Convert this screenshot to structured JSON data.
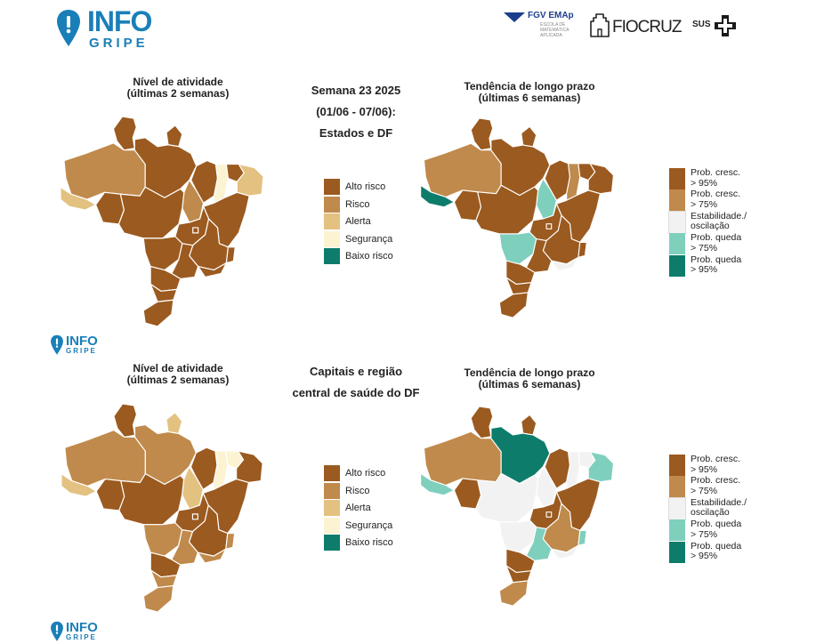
{
  "header": {
    "logo_text": "INFO",
    "logo_sub": "GRIPE",
    "partner_fgv": "FGV EMAp",
    "partner_fgv_sub": "ESCOLA DE MATEMÁTICA APLICADA",
    "partner_fiocruz": "FIOCRUZ",
    "partner_sus": "SUS"
  },
  "colors": {
    "alto_risco": "#9b5a1f",
    "risco": "#c08a4c",
    "alerta": "#e3c180",
    "seguranca": "#fcf3d2",
    "baixo_risco": "#0e7c6b",
    "prob_cresc_95": "#9b5a1f",
    "prob_cresc_75": "#c08a4c",
    "estabilidade": "#f2f2f2",
    "prob_queda_75": "#7fcfbd",
    "prob_queda_95": "#0e7c6b"
  },
  "top": {
    "center_title": [
      "Semana 23 2025",
      "(01/06 - 07/06):",
      "Estados e DF"
    ],
    "activity_title": [
      "Nível de atividade",
      "(últimas 2 semanas)"
    ],
    "trend_title": [
      "Tendência de longo prazo",
      "(últimas 6 semanas)"
    ]
  },
  "bottom": {
    "center_title": [
      "Capitais e região",
      "central de saúde do DF"
    ],
    "activity_title": [
      "Nível de atividade",
      "(últimas 2 semanas)"
    ],
    "trend_title": [
      "Tendência de longo prazo",
      "(últimas 6 semanas)"
    ]
  },
  "activity_legend": [
    "Alto risco",
    "Risco",
    "Alerta",
    "Segurança",
    "Baixo risco"
  ],
  "trend_legend": [
    [
      "Prob. cresc.",
      "> 95%"
    ],
    [
      "Prob. cresc.",
      "> 75%"
    ],
    [
      "Estabilidade./",
      "oscilação"
    ],
    [
      "Prob. queda",
      "> 75%"
    ],
    [
      "Prob. queda",
      "> 95%"
    ]
  ],
  "maps": {
    "top_activity": {
      "AM": "risco",
      "RR": "alto",
      "AP": "alto",
      "PA": "alto",
      "AC": "alerta",
      "RO": "alto",
      "TO": "risco",
      "MA": "alto",
      "PI": "seguranca",
      "CE": "alto",
      "NE": "alerta",
      "BA": "alto",
      "MT": "alto",
      "GO": "alto",
      "DF": "alto",
      "MG": "alto",
      "ES": "alto",
      "RJ": "alto",
      "SP": "alto",
      "MS": "alto",
      "PR": "alto",
      "SC": "alto",
      "RS": "alto"
    },
    "top_trend": {
      "AM": "c75",
      "RR": "c95",
      "AP": "c95",
      "PA": "c95",
      "AC": "q95",
      "RO": "c95",
      "TO": "q75",
      "MA": "c95",
      "PI": "c75",
      "CE": "c95",
      "NE": "c95",
      "BA": "c95",
      "MT": "c95",
      "GO": "c95",
      "DF": "c95",
      "MG": "c95",
      "ES": "c95",
      "RJ": "est",
      "SP": "c95",
      "MS": "q75",
      "PR": "c95",
      "SC": "c95",
      "RS": "c95"
    },
    "bottom_activity": {
      "AM": "risco",
      "RR": "alto",
      "AP": "alerta",
      "PA": "risco",
      "AC": "alerta",
      "RO": "alto",
      "TO": "alerta",
      "MA": "alto",
      "PI": "seguranca",
      "CE": "seguranca",
      "NE": "alto",
      "BA": "alto",
      "MT": "alto",
      "GO": "alto",
      "DF": "alto",
      "MG": "alto",
      "ES": "risco",
      "RJ": "risco",
      "SP": "risco",
      "MS": "risco",
      "PR": "alto",
      "SC": "risco",
      "RS": "risco"
    },
    "bottom_trend": {
      "AM": "c75",
      "RR": "c95",
      "AP": "c95",
      "PA": "q95",
      "AC": "q75",
      "RO": "c95",
      "TO": "est",
      "MA": "c95",
      "PI": "est",
      "CE": "est",
      "NE": "q75",
      "BA": "c95",
      "MT": "est",
      "GO": "c95",
      "DF": "c95",
      "MG": "c75",
      "ES": "q75",
      "RJ": "est",
      "SP": "q75",
      "MS": "est",
      "PR": "c95",
      "SC": "c95",
      "RS": "c75"
    }
  }
}
